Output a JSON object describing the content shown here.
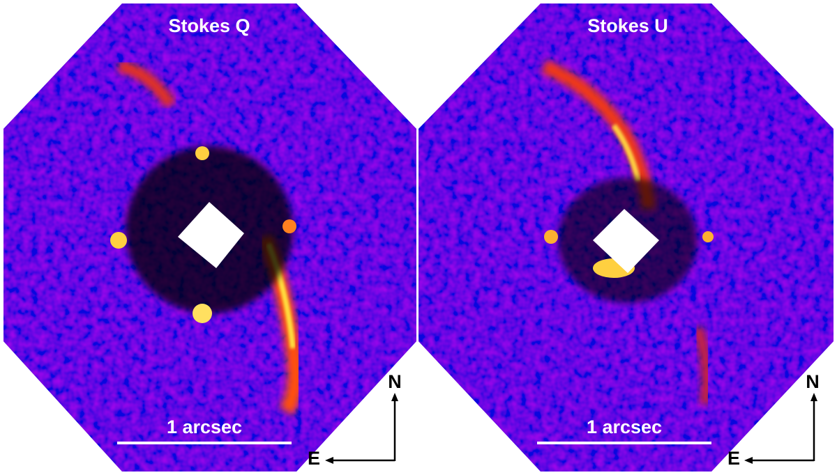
{
  "panels": [
    {
      "title": "Stokes Q",
      "scale_label": "1 arcsec",
      "north": "N",
      "east": "E"
    },
    {
      "title": "Stokes U",
      "scale_label": "1 arcsec",
      "north": "N",
      "east": "E"
    }
  ]
}
